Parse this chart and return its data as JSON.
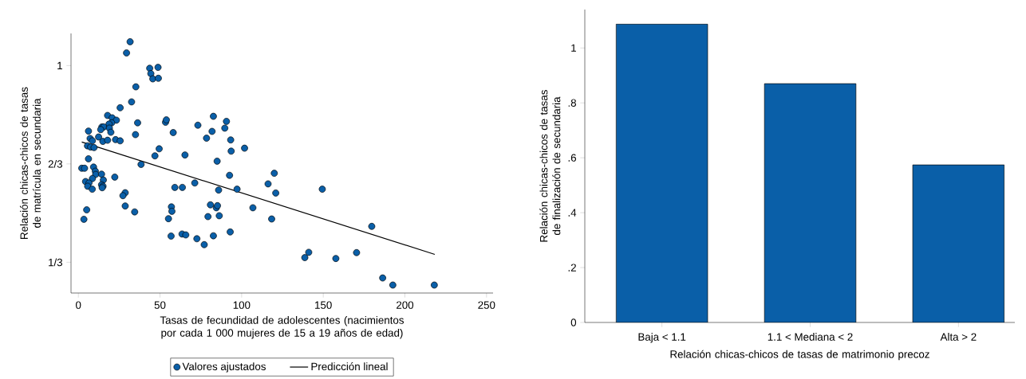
{
  "chart_data": [
    {
      "type": "scatter",
      "xlabel": "Tasas de fecundidad de adolescentes (nacimientos por cada 1 000 mujeres de 15 a 19 años de edad)",
      "ylabel": "Relación chicas-chicos de tasas de matrícula en secundaria",
      "xlim": [
        -4.5,
        254
      ],
      "ylim": [
        0.229,
        1.109
      ],
      "xticks": [
        0,
        50,
        100,
        150,
        200,
        250
      ],
      "yticks": [
        {
          "value": 0.3333,
          "label": "1/3"
        },
        {
          "value": 0.6667,
          "label": "2/3"
        },
        1
      ],
      "legend": "bottom",
      "series": [
        {
          "name": "Valores ajustados",
          "type": "scatter",
          "marker": "circle",
          "color": "#0a5fa8",
          "x": [
            31.7,
            29.5,
            43.7,
            48.8,
            44.4,
            45.6,
            49.0,
            35.2,
            32.6,
            25.6,
            17.9,
            20.7,
            23.3,
            20.4,
            18.8,
            14.4,
            15.5,
            13.7,
            19.0,
            19.9,
            36.3,
            6.2,
            12.4,
            7.2,
            8.6,
            15.0,
            17.9,
            22.8,
            25.6,
            35.0,
            5.6,
            7.5,
            9.6,
            6.2,
            38.4,
            46.9,
            49.5,
            53.4,
            53.9,
            58.1,
            65.3,
            73.2,
            82.7,
            81.9,
            78.5,
            89.7,
            90.7,
            85.0,
            2.1,
            3.8,
            9.3,
            10.4,
            10.6,
            14.2,
            22.3,
            8.6,
            4.4,
            6.5,
            15.3,
            5.7,
            8.5,
            14.2,
            15.1,
            14.6,
            59.1,
            63.7,
            71.3,
            85.9,
            28.7,
            27.3,
            28.7,
            34.5,
            5.1,
            3.4,
            57.0,
            57.3,
            55.2,
            80.9,
            84.5,
            85.2,
            79.4,
            86.3,
            56.8,
            63.5,
            65.8,
            72.6,
            77.1,
            82.7,
            93.3,
            93.6,
            101.8,
            92.6,
            97.2,
            120.0,
            116.2,
            120.9,
            149.4,
            106.9,
            118.4,
            93.0,
            179.7,
            141.1,
            138.7,
            157.7,
            170.4,
            186.4,
            192.6,
            218.0
          ],
          "values": [
            1.081,
            1.043,
            0.991,
            0.994,
            0.973,
            0.955,
            0.957,
            0.928,
            0.877,
            0.857,
            0.831,
            0.823,
            0.815,
            0.806,
            0.802,
            0.792,
            0.792,
            0.783,
            0.788,
            0.774,
            0.806,
            0.778,
            0.758,
            0.753,
            0.745,
            0.743,
            0.747,
            0.749,
            0.745,
            0.766,
            0.728,
            0.724,
            0.722,
            0.684,
            0.665,
            0.694,
            0.718,
            0.808,
            0.816,
            0.773,
            0.697,
            0.798,
            0.828,
            0.777,
            0.754,
            0.788,
            0.811,
            0.676,
            0.652,
            0.652,
            0.656,
            0.642,
            0.631,
            0.632,
            0.622,
            0.617,
            0.607,
            0.602,
            0.612,
            0.591,
            0.581,
            0.596,
            0.591,
            0.586,
            0.587,
            0.587,
            0.602,
            0.578,
            0.569,
            0.559,
            0.524,
            0.504,
            0.511,
            0.479,
            0.521,
            0.506,
            0.481,
            0.528,
            0.518,
            0.525,
            0.488,
            0.491,
            0.422,
            0.429,
            0.426,
            0.413,
            0.393,
            0.423,
            0.748,
            0.71,
            0.72,
            0.628,
            0.581,
            0.635,
            0.599,
            0.568,
            0.581,
            0.518,
            0.48,
            0.436,
            0.455,
            0.367,
            0.349,
            0.346,
            0.366,
            0.28,
            0.256,
            0.256
          ]
        },
        {
          "name": "Predicción lineal",
          "type": "line",
          "marker": "none",
          "line_style": "solid",
          "color": "#000000",
          "x": [
            2.1,
            218.3
          ],
          "values": [
            0.741,
            0.36
          ]
        }
      ]
    },
    {
      "type": "bar",
      "categories": [
        "Baja < 1.1",
        "1.1 < Mediana < 2",
        "Alta > 2"
      ],
      "values": [
        1.087,
        0.87,
        0.574
      ],
      "color": "#0a5fa8",
      "xlabel": "Relación chicas-chicos de tasas de matrimonio precoz",
      "ylabel": "Relación chicas-chicos de tasas de finalización de secundaria",
      "ylim": [
        0,
        1.14
      ],
      "yticks": [
        0,
        {
          "value": 0.2,
          "label": ".2"
        },
        {
          "value": 0.4,
          "label": ".4"
        },
        {
          "value": 0.6,
          "label": ".6"
        },
        {
          "value": 0.8,
          "label": ".8"
        },
        1
      ]
    }
  ]
}
